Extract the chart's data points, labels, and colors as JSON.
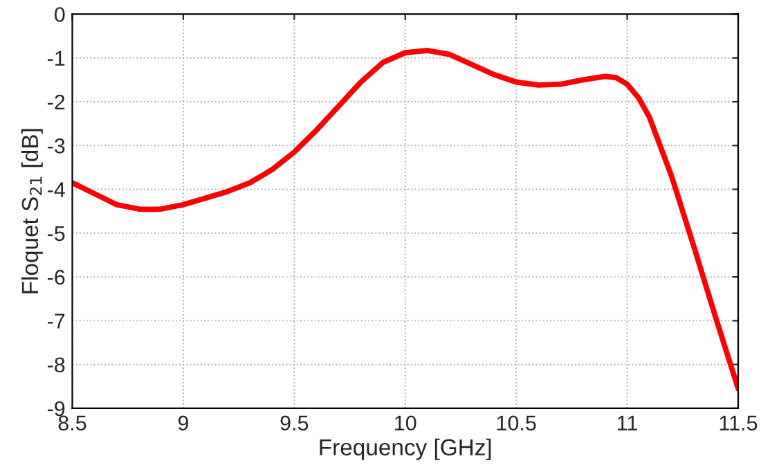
{
  "chart_data": {
    "type": "line",
    "xlabel": "Frequency [GHz]",
    "ylabel": "Floquet S$_{21}$ [dB]",
    "series": [
      {
        "color": "#ff0000",
        "x": [
          8.5,
          8.6,
          8.7,
          8.8,
          8.85,
          8.9,
          9.0,
          9.1,
          9.2,
          9.3,
          9.4,
          9.5,
          9.6,
          9.7,
          9.8,
          9.9,
          10.0,
          10.1,
          10.2,
          10.3,
          10.4,
          10.5,
          10.6,
          10.7,
          10.8,
          10.9,
          10.95,
          11.0,
          11.05,
          11.1,
          11.2,
          11.3,
          11.4,
          11.5
        ],
        "values": [
          -3.85,
          -4.1,
          -4.35,
          -4.45,
          -4.46,
          -4.45,
          -4.35,
          -4.2,
          -4.05,
          -3.85,
          -3.55,
          -3.15,
          -2.65,
          -2.1,
          -1.55,
          -1.1,
          -0.88,
          -0.83,
          -0.92,
          -1.15,
          -1.38,
          -1.55,
          -1.62,
          -1.6,
          -1.5,
          -1.42,
          -1.45,
          -1.6,
          -1.9,
          -2.35,
          -3.7,
          -5.3,
          -6.95,
          -8.55
        ]
      }
    ],
    "xlim": [
      8.5,
      11.5
    ],
    "xticks": [
      8.5,
      9,
      9.5,
      10,
      10.5,
      11,
      11.5
    ],
    "ylim": [
      -9,
      0
    ],
    "yticks": [
      -9,
      -8,
      -7,
      -6,
      -5,
      -4,
      -3,
      -2,
      -1,
      0
    ],
    "grid": true,
    "line_style": "solid",
    "marker": "none"
  }
}
